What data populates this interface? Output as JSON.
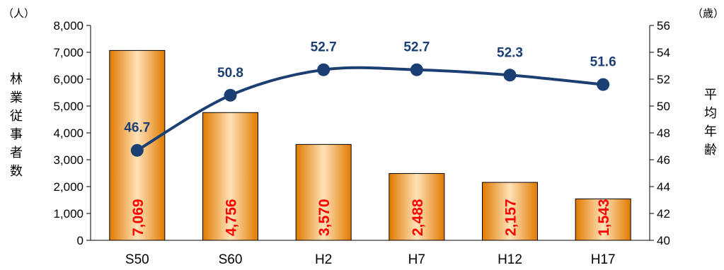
{
  "chart_data": {
    "type": "bar+line",
    "categories": [
      "S50",
      "S60",
      "H2",
      "H7",
      "H12",
      "H17"
    ],
    "series": [
      {
        "type": "bar",
        "axis": "left",
        "values": [
          7069,
          4756,
          3570,
          2488,
          2157,
          1543
        ],
        "value_labels": [
          "7,069",
          "4,756",
          "3,570",
          "2,488",
          "2,157",
          "1,543"
        ]
      },
      {
        "type": "line",
        "axis": "right",
        "values": [
          46.7,
          50.8,
          52.7,
          52.7,
          52.3,
          51.6
        ],
        "value_labels": [
          "46.7",
          "50.8",
          "52.7",
          "52.7",
          "52.3",
          "51.6"
        ]
      }
    ],
    "y_left": {
      "label_chars": [
        "林",
        "業",
        "従",
        "事",
        "者",
        "数"
      ],
      "unit": "（人）",
      "range": [
        0,
        8000
      ],
      "ticks": [
        0,
        1000,
        2000,
        3000,
        4000,
        5000,
        6000,
        7000,
        8000
      ],
      "tick_labels": [
        "0",
        "1,000",
        "2,000",
        "3,000",
        "4,000",
        "5,000",
        "6,000",
        "7,000",
        "8,000"
      ]
    },
    "y_right": {
      "label_chars": [
        "平",
        "均",
        "年",
        "齢"
      ],
      "unit": "（歳）",
      "range": [
        40,
        56
      ],
      "ticks": [
        40,
        42,
        44,
        46,
        48,
        50,
        52,
        54,
        56
      ],
      "tick_labels": [
        "40",
        "42",
        "44",
        "46",
        "48",
        "50",
        "52",
        "54",
        "56"
      ]
    },
    "grid": false,
    "legend": "none",
    "colors": {
      "bar_edge": "#e07a00",
      "bar_mid": "#ffe2b8",
      "bar_outline": "#000000",
      "bar_label": "#ff0000",
      "line": "#1b3f73",
      "line_label": "#1b3f73"
    }
  }
}
